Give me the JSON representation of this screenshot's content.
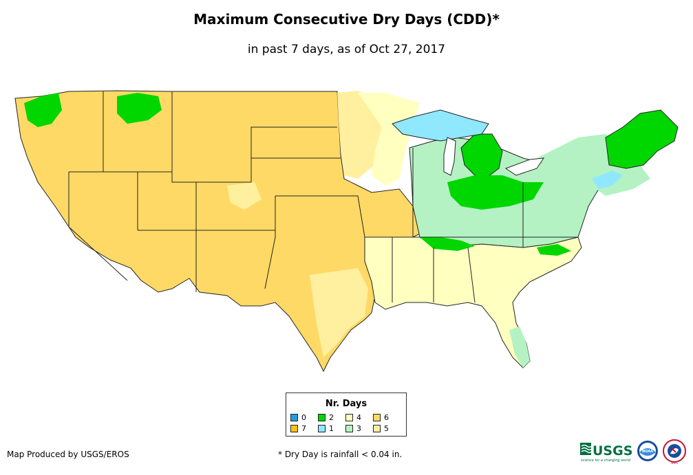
{
  "header": {
    "title": "Maximum Consecutive Dry Days (CDD)*",
    "subtitle": "in past 7 days, as of Oct 27, 2017"
  },
  "legend": {
    "title": "Nr. Days",
    "items": [
      {
        "label": "0",
        "color": "#1f9fe0"
      },
      {
        "label": "2",
        "color": "#00d600"
      },
      {
        "label": "4",
        "color": "#ffffc0"
      },
      {
        "label": "6",
        "color": "#ffd966"
      },
      {
        "label": "7",
        "color": "#ffc20e"
      },
      {
        "label": "1",
        "color": "#8fe8ff"
      },
      {
        "label": "3",
        "color": "#b4f2c3"
      },
      {
        "label": "5",
        "color": "#fff0a0"
      }
    ]
  },
  "footer": {
    "credit": "Map Produced by USGS/EROS",
    "footnote": "* Dry Day is rainfall < 0.04 in."
  },
  "logos": {
    "usgs": "USGS",
    "usgs_tagline": "science for a changing world",
    "noaa": "NOAA",
    "nws": "NWS"
  },
  "colors": {
    "c0": "#1f9fe0",
    "c1": "#8fe8ff",
    "c2": "#00d600",
    "c3": "#b4f2c3",
    "c4": "#ffffc0",
    "c5": "#fff0a0",
    "c6": "#ffd966",
    "c7": "#ffc20e",
    "border": "#222222"
  }
}
